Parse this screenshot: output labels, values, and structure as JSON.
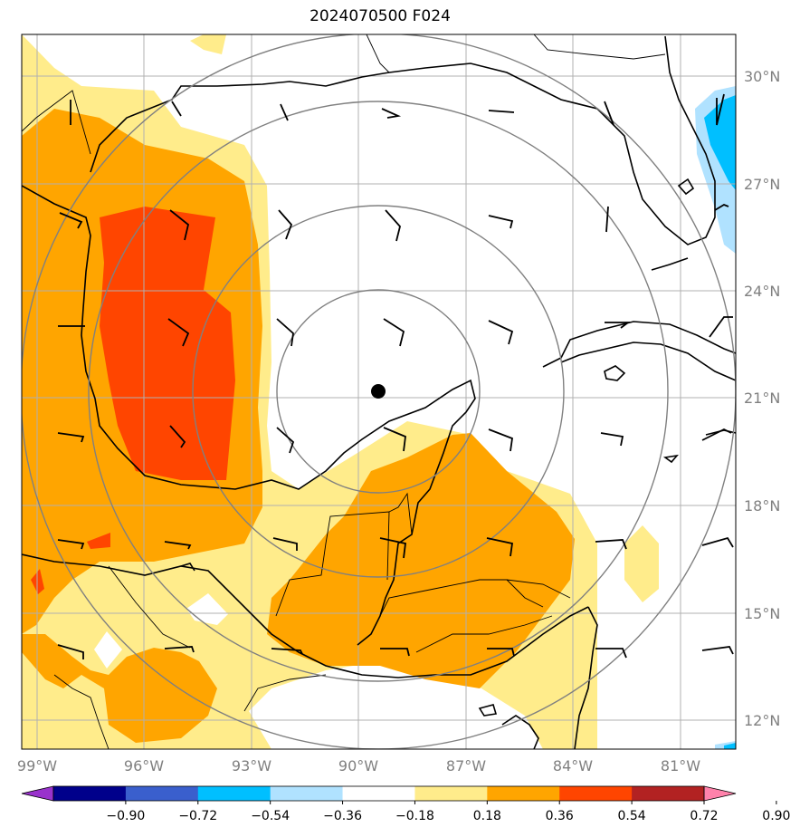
{
  "title": "2024070500 F024",
  "lon_labels": [
    "99°W",
    "96°W",
    "93°W",
    "90°W",
    "87°W",
    "84°W",
    "81°W"
  ],
  "lat_labels": [
    "30°N",
    "27°N",
    "24°N",
    "21°N",
    "18°N",
    "15°N",
    "12°N"
  ],
  "colorbar": {
    "colors": [
      "#9932CC",
      "#00008B",
      "#3A5FCD",
      "#00BFFF",
      "#B0E2FF",
      "#FFFFFF",
      "#FFEC8B",
      "#FFA500",
      "#FF4500",
      "#B22222",
      "#FF82AB"
    ],
    "ticks": [
      "−0.90",
      "−0.72",
      "−0.54",
      "−0.36",
      "−0.18",
      "0.18",
      "0.36",
      "0.54",
      "0.72",
      "0.90"
    ]
  },
  "center_marker": {
    "lon": -89.4,
    "lat": 21.2
  },
  "range_ring_radii_deg": [
    3,
    5,
    8,
    10
  ],
  "field_colors": {
    "light": "#FFEC8B",
    "mid": "#FFA500",
    "high": "#FF4500",
    "neg_light": "#B0E2FF",
    "neg": "#00BFFF"
  }
}
